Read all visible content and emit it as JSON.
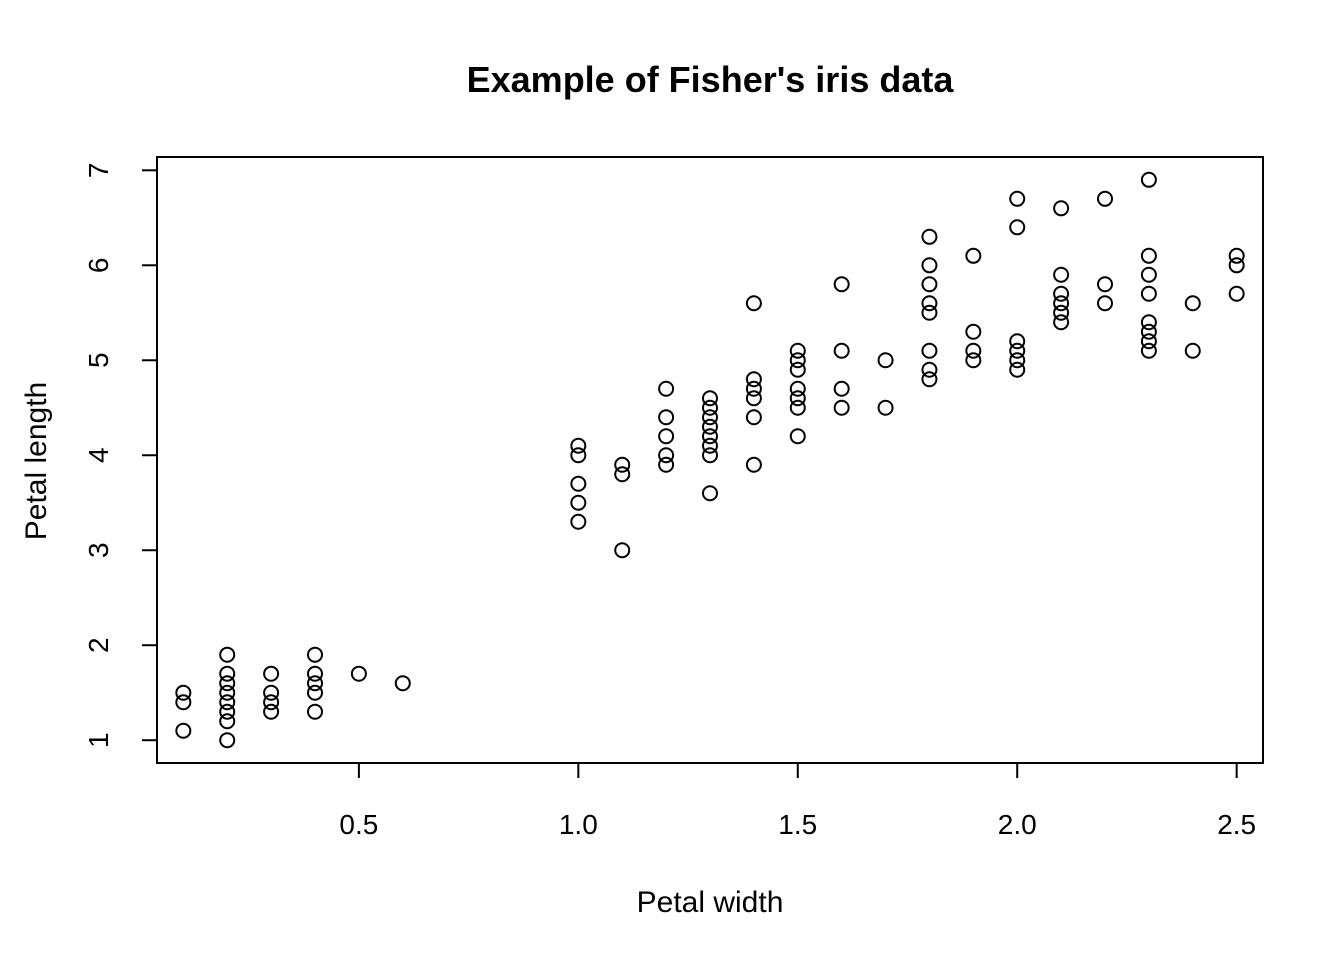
{
  "chart_data": {
    "type": "scatter",
    "title": "Example of Fisher's iris data",
    "xlabel": "Petal width",
    "ylabel": "Petal length",
    "xlim": [
      0.04,
      2.56
    ],
    "ylim": [
      0.76,
      7.14
    ],
    "xticks": [
      0.5,
      1.0,
      1.5,
      2.0,
      2.5
    ],
    "xtick_labels": [
      "0.5",
      "1.0",
      "1.5",
      "2.0",
      "2.5"
    ],
    "yticks": [
      1,
      2,
      3,
      4,
      5,
      6,
      7
    ],
    "ytick_labels": [
      "1",
      "2",
      "3",
      "4",
      "5",
      "6",
      "7"
    ],
    "grid": false,
    "marker": "open-circle",
    "points": [
      [
        0.1,
        1.5
      ],
      [
        0.1,
        1.4
      ],
      [
        0.1,
        1.1
      ],
      [
        0.2,
        1.9
      ],
      [
        0.2,
        1.7
      ],
      [
        0.2,
        1.6
      ],
      [
        0.2,
        1.5
      ],
      [
        0.2,
        1.4
      ],
      [
        0.2,
        1.3
      ],
      [
        0.2,
        1.2
      ],
      [
        0.2,
        1.0
      ],
      [
        0.3,
        1.7
      ],
      [
        0.3,
        1.5
      ],
      [
        0.3,
        1.4
      ],
      [
        0.3,
        1.3
      ],
      [
        0.4,
        1.9
      ],
      [
        0.4,
        1.7
      ],
      [
        0.4,
        1.6
      ],
      [
        0.4,
        1.5
      ],
      [
        0.4,
        1.3
      ],
      [
        0.5,
        1.7
      ],
      [
        0.6,
        1.6
      ],
      [
        1.0,
        4.1
      ],
      [
        1.0,
        4.0
      ],
      [
        1.0,
        3.7
      ],
      [
        1.0,
        3.5
      ],
      [
        1.0,
        3.3
      ],
      [
        1.1,
        3.9
      ],
      [
        1.1,
        3.8
      ],
      [
        1.1,
        3.0
      ],
      [
        1.2,
        4.7
      ],
      [
        1.2,
        4.4
      ],
      [
        1.2,
        4.2
      ],
      [
        1.2,
        4.0
      ],
      [
        1.2,
        3.9
      ],
      [
        1.3,
        4.6
      ],
      [
        1.3,
        4.5
      ],
      [
        1.3,
        4.4
      ],
      [
        1.3,
        4.3
      ],
      [
        1.3,
        4.2
      ],
      [
        1.3,
        4.1
      ],
      [
        1.3,
        4.0
      ],
      [
        1.3,
        3.6
      ],
      [
        1.4,
        5.6
      ],
      [
        1.4,
        4.8
      ],
      [
        1.4,
        4.7
      ],
      [
        1.4,
        4.6
      ],
      [
        1.4,
        4.4
      ],
      [
        1.4,
        3.9
      ],
      [
        1.5,
        5.1
      ],
      [
        1.5,
        5.0
      ],
      [
        1.5,
        4.9
      ],
      [
        1.5,
        4.7
      ],
      [
        1.5,
        4.6
      ],
      [
        1.5,
        4.5
      ],
      [
        1.5,
        4.2
      ],
      [
        1.6,
        5.8
      ],
      [
        1.6,
        5.1
      ],
      [
        1.6,
        4.7
      ],
      [
        1.6,
        4.5
      ],
      [
        1.7,
        5.0
      ],
      [
        1.7,
        4.5
      ],
      [
        1.8,
        6.3
      ],
      [
        1.8,
        6.0
      ],
      [
        1.8,
        5.8
      ],
      [
        1.8,
        5.6
      ],
      [
        1.8,
        5.5
      ],
      [
        1.8,
        5.1
      ],
      [
        1.8,
        4.9
      ],
      [
        1.8,
        4.8
      ],
      [
        1.9,
        6.1
      ],
      [
        1.9,
        5.3
      ],
      [
        1.9,
        5.1
      ],
      [
        1.9,
        5.0
      ],
      [
        2.0,
        6.7
      ],
      [
        2.0,
        6.4
      ],
      [
        2.0,
        5.2
      ],
      [
        2.0,
        5.1
      ],
      [
        2.0,
        5.0
      ],
      [
        2.0,
        4.9
      ],
      [
        2.1,
        6.6
      ],
      [
        2.1,
        5.9
      ],
      [
        2.1,
        5.7
      ],
      [
        2.1,
        5.6
      ],
      [
        2.1,
        5.5
      ],
      [
        2.1,
        5.4
      ],
      [
        2.2,
        6.7
      ],
      [
        2.2,
        5.8
      ],
      [
        2.2,
        5.6
      ],
      [
        2.3,
        6.9
      ],
      [
        2.3,
        6.1
      ],
      [
        2.3,
        5.9
      ],
      [
        2.3,
        5.7
      ],
      [
        2.3,
        5.4
      ],
      [
        2.3,
        5.3
      ],
      [
        2.3,
        5.2
      ],
      [
        2.3,
        5.1
      ],
      [
        2.4,
        5.6
      ],
      [
        2.4,
        5.1
      ],
      [
        2.5,
        6.1
      ],
      [
        2.5,
        6.0
      ],
      [
        2.5,
        5.7
      ]
    ]
  }
}
